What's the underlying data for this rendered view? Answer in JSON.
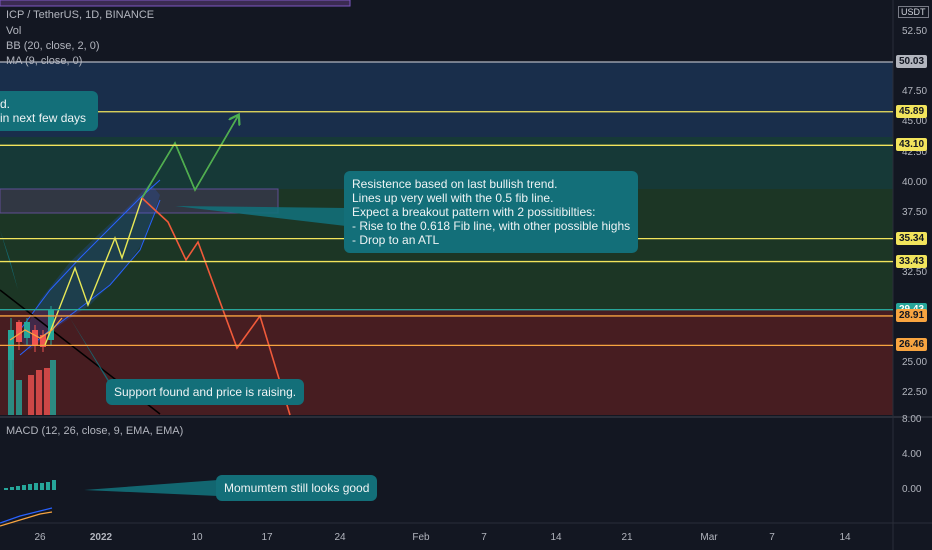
{
  "header": {
    "symbol_line": "ICP / TetherUS, 1D, BINANCE",
    "vol": "Vol",
    "bb": "BB (20, close, 2, 0)",
    "ma": "MA (9, close, 0)",
    "quote_unit": "USDT",
    "macd_label": "MACD (12, 26, close, 9, EMA, EMA)"
  },
  "annotations": {
    "top_left": "d.\nin next few days",
    "resistance": "Resistence based on last bullish trend.\nLines up very well with the 0.5 fib line.\nExpect a breakout pattern with 2 possitibilties:\n- Rise to the 0.618 Fib line, with other possible highs\n- Drop to an ATL",
    "support": "Support found and price is raising.",
    "momentum": "Momumtem still looks good"
  },
  "colors": {
    "background": "#131722",
    "callout": "#136f79",
    "bullish": "#26a69a",
    "bearish": "#ef5350",
    "fib_yellow": "#f2e45c",
    "fib_orange": "#f7a440"
  },
  "chart_data": {
    "type": "line",
    "price_axis": {
      "ticks": [
        "52.50",
        "47.50",
        "45.00",
        "42.50",
        "40.00",
        "37.50",
        "32.50",
        "25.00",
        "22.50"
      ],
      "tick_values": [
        52.5,
        47.5,
        45,
        42.5,
        40,
        37.5,
        32.5,
        25,
        22.5
      ]
    },
    "macd_axis": {
      "ticks": [
        "8.00",
        "4.00",
        "0.00"
      ],
      "tick_values": [
        8,
        4,
        0
      ]
    },
    "time_axis": {
      "ticks": [
        "26",
        "2022",
        "10",
        "17",
        "24",
        "Feb",
        "7",
        "14",
        "21",
        "Mar",
        "7",
        "14"
      ]
    },
    "horizontal_levels": [
      {
        "label": "50.03",
        "value": 50.03,
        "color": "#b2b5be"
      },
      {
        "label": "45.89",
        "value": 45.89,
        "color": "#f2e45c"
      },
      {
        "label": "43.10",
        "value": 43.1,
        "color": "#f2e45c"
      },
      {
        "label": "35.34",
        "value": 35.34,
        "color": "#f2e45c"
      },
      {
        "label": "33.43",
        "value": 33.43,
        "color": "#f2e45c"
      },
      {
        "label": "29.43",
        "value": 29.43,
        "color": "#26a69a"
      },
      {
        "label": "28.91",
        "value": 28.91,
        "color": "#f7a440"
      },
      {
        "label": "26.46",
        "value": 26.46,
        "color": "#f7a440"
      }
    ]
  }
}
